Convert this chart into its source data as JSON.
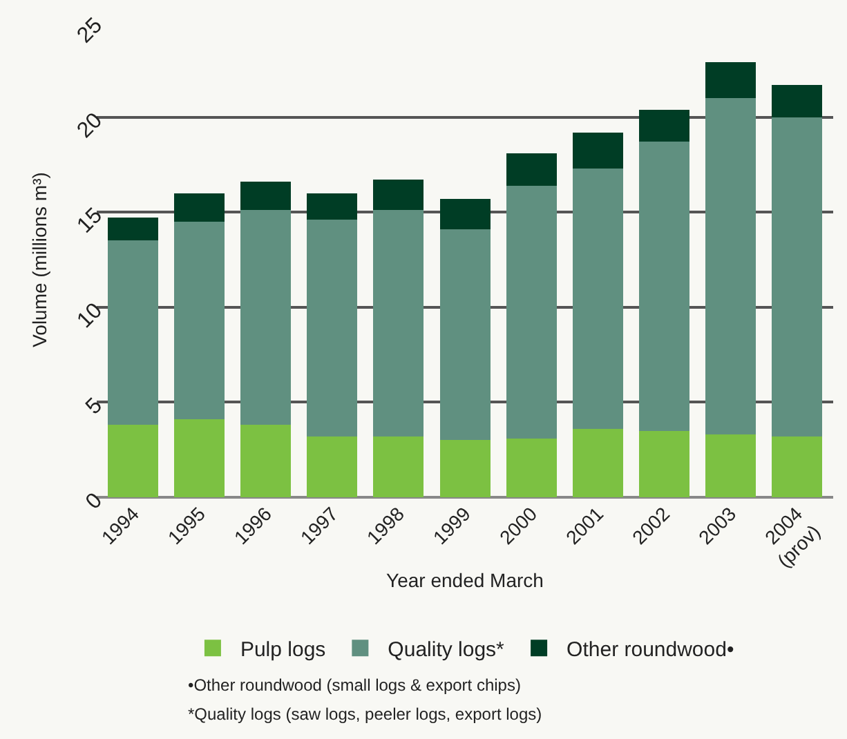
{
  "chart_data": {
    "type": "bar",
    "stacked": true,
    "categories": [
      "1994",
      "1995",
      "1996",
      "1997",
      "1998",
      "1999",
      "2000",
      "2001",
      "2002",
      "2003",
      "2004\n(prov)"
    ],
    "series": [
      {
        "name": "Pulp logs",
        "color": "#7cc142",
        "values": [
          3.8,
          4.1,
          3.8,
          3.2,
          3.2,
          3.0,
          3.1,
          3.6,
          3.5,
          3.3,
          3.2
        ]
      },
      {
        "name": "Quality logs*",
        "color": "#609080",
        "values": [
          9.7,
          10.4,
          11.3,
          11.4,
          11.9,
          11.1,
          13.3,
          13.7,
          15.2,
          17.7,
          16.8
        ]
      },
      {
        "name": "Other roundwood•",
        "color": "#003d25",
        "values": [
          1.2,
          1.5,
          1.5,
          1.4,
          1.6,
          1.6,
          1.7,
          1.9,
          1.7,
          1.9,
          1.7
        ]
      }
    ],
    "xlabel": "Year ended March",
    "ylabel": "Volume (millions m³)",
    "ylim": [
      0,
      25
    ],
    "yticks": [
      0,
      5,
      10,
      15,
      20,
      25
    ],
    "grid": "y",
    "legend": "bottom",
    "annotations": [
      "•Other roundwood (small logs & export chips)",
      "*Quality logs (saw logs, peeler logs, export logs)"
    ]
  }
}
